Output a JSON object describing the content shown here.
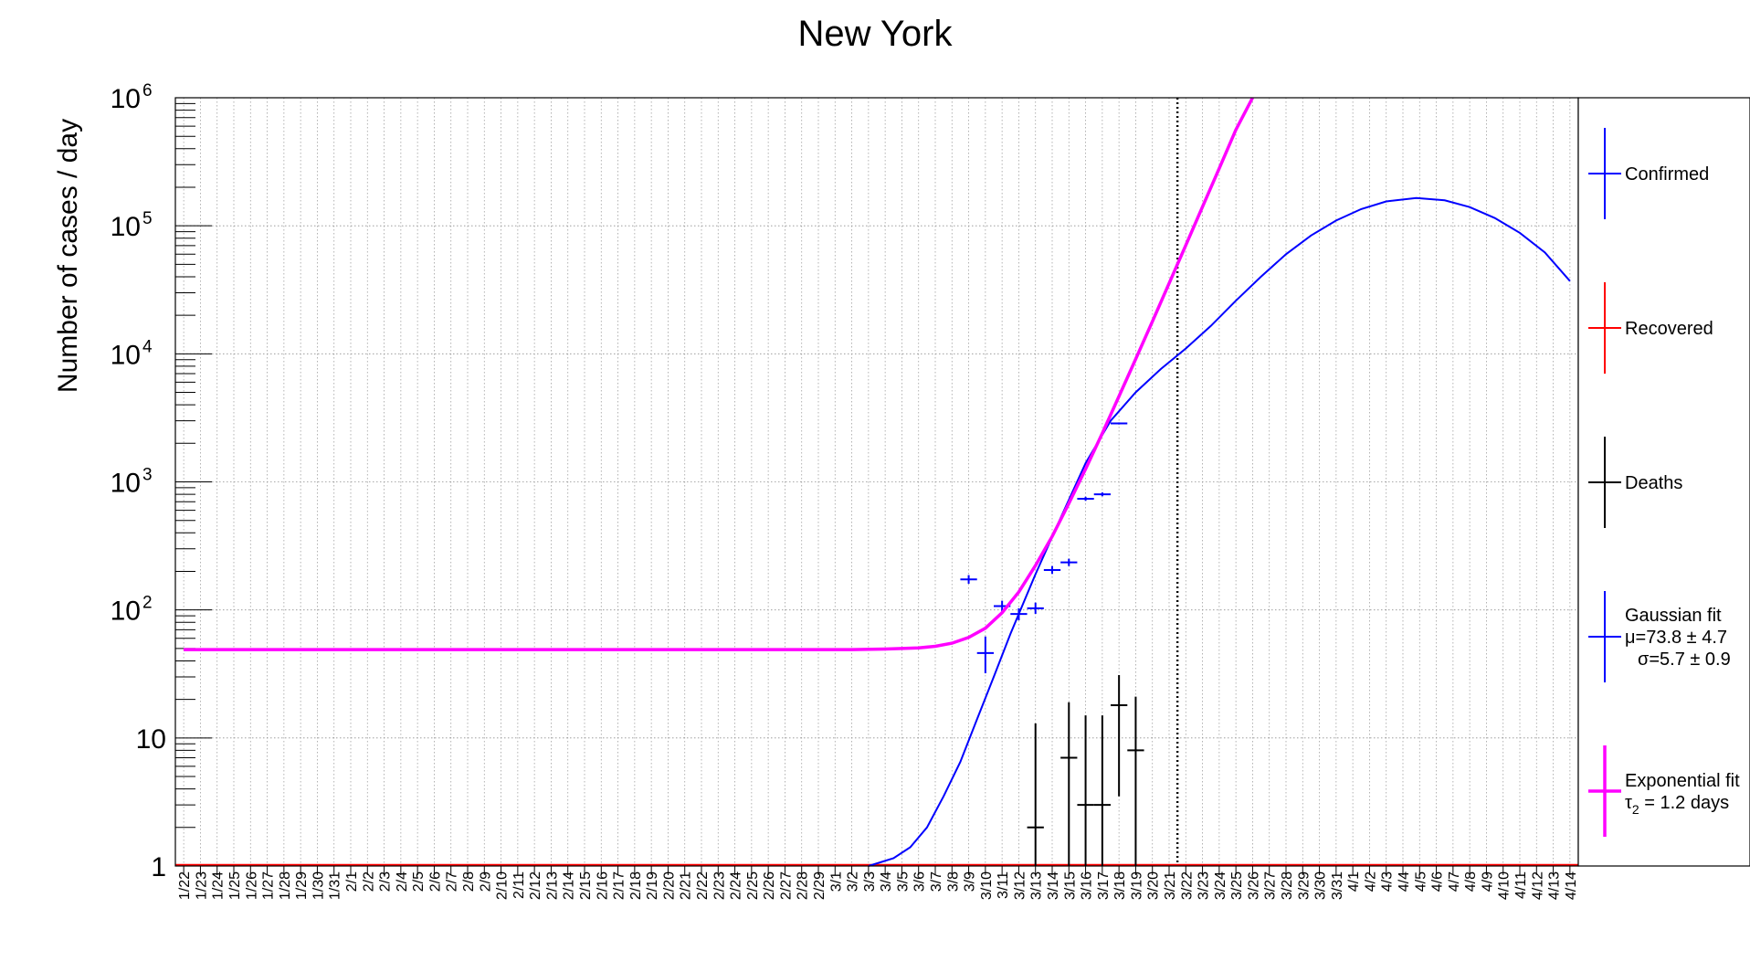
{
  "chart_data": {
    "type": "line",
    "title": "New York",
    "xlabel": "",
    "ylabel": "Number of cases / day",
    "yscale": "log",
    "ylim": [
      1,
      1000000
    ],
    "y_ticks": [
      {
        "base": "10",
        "exp": "6"
      },
      {
        "base": "10",
        "exp": "5"
      },
      {
        "base": "10",
        "exp": "4"
      },
      {
        "base": "10",
        "exp": "3"
      },
      {
        "base": "10",
        "exp": "2"
      },
      {
        "base": "10",
        "exp": ""
      },
      {
        "base": "1",
        "exp": ""
      }
    ],
    "x_categories": [
      "1/22",
      "1/23",
      "1/24",
      "1/25",
      "1/26",
      "1/27",
      "1/28",
      "1/29",
      "1/30",
      "1/31",
      "2/1",
      "2/2",
      "2/3",
      "2/4",
      "2/5",
      "2/6",
      "2/7",
      "2/8",
      "2/9",
      "2/10",
      "2/11",
      "2/12",
      "2/13",
      "2/14",
      "2/15",
      "2/16",
      "2/17",
      "2/18",
      "2/19",
      "2/20",
      "2/21",
      "2/22",
      "2/23",
      "2/24",
      "2/25",
      "2/26",
      "2/27",
      "2/28",
      "2/29",
      "3/1",
      "3/2",
      "3/3",
      "3/4",
      "3/5",
      "3/6",
      "3/7",
      "3/8",
      "3/9",
      "3/10",
      "3/11",
      "3/12",
      "3/13",
      "3/14",
      "3/15",
      "3/16",
      "3/17",
      "3/18",
      "3/19",
      "3/20",
      "3/21",
      "3/22",
      "3/23",
      "3/24",
      "3/25",
      "3/26",
      "3/27",
      "3/28",
      "3/29",
      "3/30",
      "3/31",
      "4/1",
      "4/2",
      "4/3",
      "4/4",
      "4/5",
      "4/6",
      "4/7",
      "4/8",
      "4/9",
      "4/10",
      "4/11",
      "4/12",
      "4/13",
      "4/14"
    ],
    "grid": true,
    "vertical_marker": {
      "x_index": 59.5,
      "style": "dotted",
      "color": "#000000"
    },
    "series": [
      {
        "name": "Confirmed",
        "kind": "points",
        "color": "#0000ff",
        "points": [
          {
            "x": 47,
            "y": 173,
            "lo": 160,
            "hi": 187
          },
          {
            "x": 48,
            "y": 46,
            "lo": 32,
            "hi": 62
          },
          {
            "x": 49,
            "y": 107,
            "lo": 97,
            "hi": 118
          },
          {
            "x": 50,
            "y": 93,
            "lo": 83,
            "hi": 103
          },
          {
            "x": 51,
            "y": 103,
            "lo": 93,
            "hi": 114
          },
          {
            "x": 52,
            "y": 205,
            "lo": 191,
            "hi": 220
          },
          {
            "x": 53,
            "y": 235,
            "lo": 220,
            "hi": 251
          },
          {
            "x": 54,
            "y": 738,
            "lo": 711,
            "hi": 765
          },
          {
            "x": 55,
            "y": 800,
            "lo": 772,
            "hi": 828
          },
          {
            "x": 56,
            "y": 2860,
            "lo": 2807,
            "hi": 2913
          }
        ]
      },
      {
        "name": "Recovered",
        "kind": "baseline",
        "color": "#ff0000",
        "value": 1
      },
      {
        "name": "Deaths",
        "kind": "points",
        "color": "#000000",
        "points": [
          {
            "x": 51,
            "y": 2,
            "lo": 1,
            "hi": 13
          },
          {
            "x": 53,
            "y": 7,
            "lo": 1,
            "hi": 19
          },
          {
            "x": 54,
            "y": 3,
            "lo": 1,
            "hi": 15
          },
          {
            "x": 55,
            "y": 3,
            "lo": 1,
            "hi": 15
          },
          {
            "x": 56,
            "y": 18,
            "lo": 3.5,
            "hi": 31
          },
          {
            "x": 57,
            "y": 8,
            "lo": 1,
            "hi": 21
          }
        ]
      },
      {
        "name": "Gaussian fit",
        "kind": "fit",
        "color": "#0000ff",
        "mu_label": "μ=73.8 ± 4.7",
        "sigma_label": "σ=5.7 ± 0.9",
        "curve": [
          {
            "x": 41.0,
            "y": 1.0
          },
          {
            "x": 42.5,
            "y": 1.15
          },
          {
            "x": 43.5,
            "y": 1.4
          },
          {
            "x": 44.5,
            "y": 2.0
          },
          {
            "x": 45.5,
            "y": 3.5
          },
          {
            "x": 46.5,
            "y": 6.5
          },
          {
            "x": 47.5,
            "y": 14
          },
          {
            "x": 48.5,
            "y": 30
          },
          {
            "x": 49.5,
            "y": 65
          },
          {
            "x": 51.0,
            "y": 190
          },
          {
            "x": 52.5,
            "y": 520
          },
          {
            "x": 54.0,
            "y": 1400
          },
          {
            "x": 55.5,
            "y": 3000
          },
          {
            "x": 57.0,
            "y": 5000
          },
          {
            "x": 58.5,
            "y": 7600
          },
          {
            "x": 60.0,
            "y": 11000
          },
          {
            "x": 61.5,
            "y": 16500
          },
          {
            "x": 63.0,
            "y": 26000
          },
          {
            "x": 64.5,
            "y": 40000
          },
          {
            "x": 66.0,
            "y": 60000
          },
          {
            "x": 67.5,
            "y": 84000
          },
          {
            "x": 69.0,
            "y": 110000
          },
          {
            "x": 70.5,
            "y": 135000
          },
          {
            "x": 72.0,
            "y": 155000
          },
          {
            "x": 73.8,
            "y": 165000
          },
          {
            "x": 75.5,
            "y": 158000
          },
          {
            "x": 77.0,
            "y": 140000
          },
          {
            "x": 78.5,
            "y": 115000
          },
          {
            "x": 80.0,
            "y": 88000
          },
          {
            "x": 81.5,
            "y": 62000
          },
          {
            "x": 83.0,
            "y": 37000
          }
        ]
      },
      {
        "name": "Exponential fit",
        "kind": "fit",
        "color": "#ff00ff",
        "tau_label": "τ",
        "tau_sub": "2",
        "tau_value": " = 1.2 days",
        "curve": [
          {
            "x": 0.0,
            "y": 49
          },
          {
            "x": 10,
            "y": 49
          },
          {
            "x": 20,
            "y": 49
          },
          {
            "x": 30,
            "y": 49
          },
          {
            "x": 40.0,
            "y": 49
          },
          {
            "x": 42.0,
            "y": 49.5
          },
          {
            "x": 44.0,
            "y": 50.5
          },
          {
            "x": 45.0,
            "y": 52
          },
          {
            "x": 46.0,
            "y": 55
          },
          {
            "x": 47.0,
            "y": 61
          },
          {
            "x": 48.0,
            "y": 72
          },
          {
            "x": 49.0,
            "y": 95
          },
          {
            "x": 50.0,
            "y": 138
          },
          {
            "x": 51.0,
            "y": 222
          },
          {
            "x": 52.0,
            "y": 375
          },
          {
            "x": 53.0,
            "y": 680
          },
          {
            "x": 54.0,
            "y": 1260
          },
          {
            "x": 55.0,
            "y": 2400
          },
          {
            "x": 56.0,
            "y": 4650
          },
          {
            "x": 57.0,
            "y": 9100
          },
          {
            "x": 58.0,
            "y": 17900
          },
          {
            "x": 59.0,
            "y": 35500
          },
          {
            "x": 60.0,
            "y": 70500
          },
          {
            "x": 61.0,
            "y": 141000
          },
          {
            "x": 62.0,
            "y": 281000
          },
          {
            "x": 63.0,
            "y": 562000
          },
          {
            "x": 64.0,
            "y": 1000000
          }
        ]
      }
    ]
  }
}
